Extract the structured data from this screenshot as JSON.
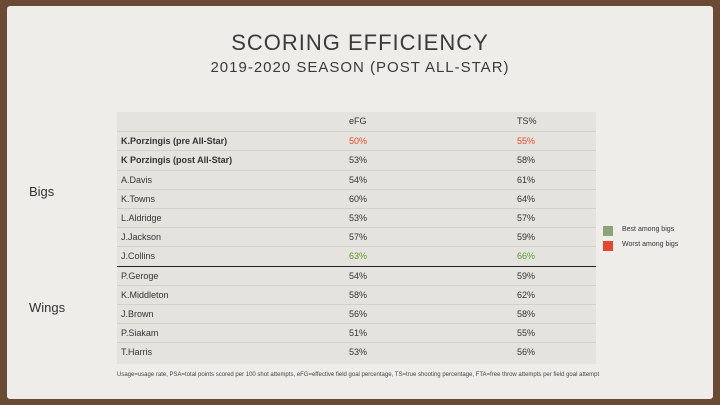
{
  "title": "SCORING EFFICIENCY",
  "subtitle": "2019-2020 SEASON (POST ALL-STAR)",
  "groups": {
    "bigs": "Bigs",
    "wings": "Wings"
  },
  "legend": {
    "best": {
      "label": "Best among bigs",
      "color": "#8fa37a"
    },
    "worst": {
      "label": "Worst among bigs",
      "color": "#e8452e"
    }
  },
  "footnote": "Usage=usage rate, PSA=total points scored per 100 shot attempts, eFG=effective field goal percentage, TS=true shooting percentage, FTA=free throw attempts per field goal attempt",
  "chart_data": {
    "type": "table",
    "columns": [
      "",
      "eFG",
      "TS%"
    ],
    "rows": [
      {
        "player": "K.Porzingis (pre All-Star)",
        "efg": "50%",
        "ts": "55%",
        "group": "Bigs",
        "bold": true,
        "efg_mark": "worst",
        "ts_mark": "worst"
      },
      {
        "player": "K Porzingis (post All-Star)",
        "efg": "53%",
        "ts": "58%",
        "group": "Bigs",
        "bold": true,
        "efg_mark": "",
        "ts_mark": ""
      },
      {
        "player": "A.Davis",
        "efg": "54%",
        "ts": "61%",
        "group": "Bigs",
        "bold": false,
        "efg_mark": "",
        "ts_mark": ""
      },
      {
        "player": "K.Towns",
        "efg": "60%",
        "ts": "64%",
        "group": "Bigs",
        "bold": false,
        "efg_mark": "",
        "ts_mark": ""
      },
      {
        "player": "L.Aldridge",
        "efg": "53%",
        "ts": "57%",
        "group": "Bigs",
        "bold": false,
        "efg_mark": "",
        "ts_mark": ""
      },
      {
        "player": "J.Jackson",
        "efg": "57%",
        "ts": "59%",
        "group": "Bigs",
        "bold": false,
        "efg_mark": "",
        "ts_mark": ""
      },
      {
        "player": "J.Collins",
        "efg": "63%",
        "ts": "66%",
        "group": "Bigs",
        "bold": false,
        "efg_mark": "best",
        "ts_mark": "best"
      },
      {
        "player": "P.Geroge",
        "efg": "54%",
        "ts": "59%",
        "group": "Wings",
        "bold": false,
        "efg_mark": "",
        "ts_mark": ""
      },
      {
        "player": "K.Middleton",
        "efg": "58%",
        "ts": "62%",
        "group": "Wings",
        "bold": false,
        "efg_mark": "",
        "ts_mark": ""
      },
      {
        "player": "J.Brown",
        "efg": "56%",
        "ts": "58%",
        "group": "Wings",
        "bold": false,
        "efg_mark": "",
        "ts_mark": ""
      },
      {
        "player": "P.Siakam",
        "efg": "51%",
        "ts": "55%",
        "group": "Wings",
        "bold": false,
        "efg_mark": "",
        "ts_mark": ""
      },
      {
        "player": "T.Harris",
        "efg": "53%",
        "ts": "56%",
        "group": "Wings",
        "bold": false,
        "efg_mark": "",
        "ts_mark": ""
      }
    ]
  }
}
